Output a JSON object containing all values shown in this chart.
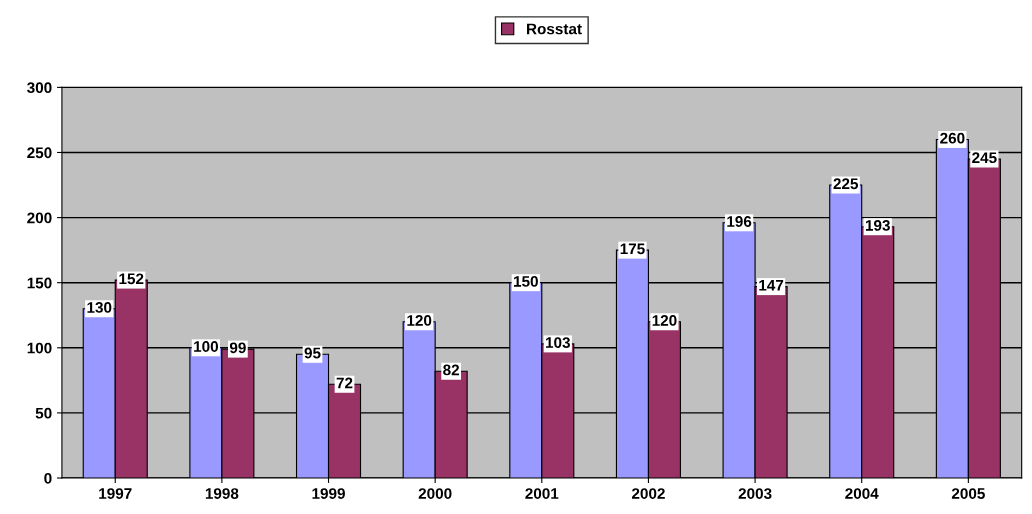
{
  "chart_data": {
    "type": "bar",
    "categories": [
      "1997",
      "1998",
      "1999",
      "2000",
      "2001",
      "2002",
      "2003",
      "2004",
      "2005"
    ],
    "series": [
      {
        "color": "#9999ff",
        "values": [
          130,
          100,
          95,
          120,
          150,
          175,
          196,
          225,
          260
        ]
      },
      {
        "name": "Rosstat",
        "color": "#993366",
        "values": [
          152,
          99,
          72,
          82,
          103,
          120,
          147,
          193,
          245
        ]
      }
    ],
    "ylim": [
      0,
      300
    ],
    "yticks": [
      0,
      50,
      100,
      150,
      200,
      250,
      300
    ],
    "grid": "y",
    "legend": "top",
    "data_labels": true
  }
}
